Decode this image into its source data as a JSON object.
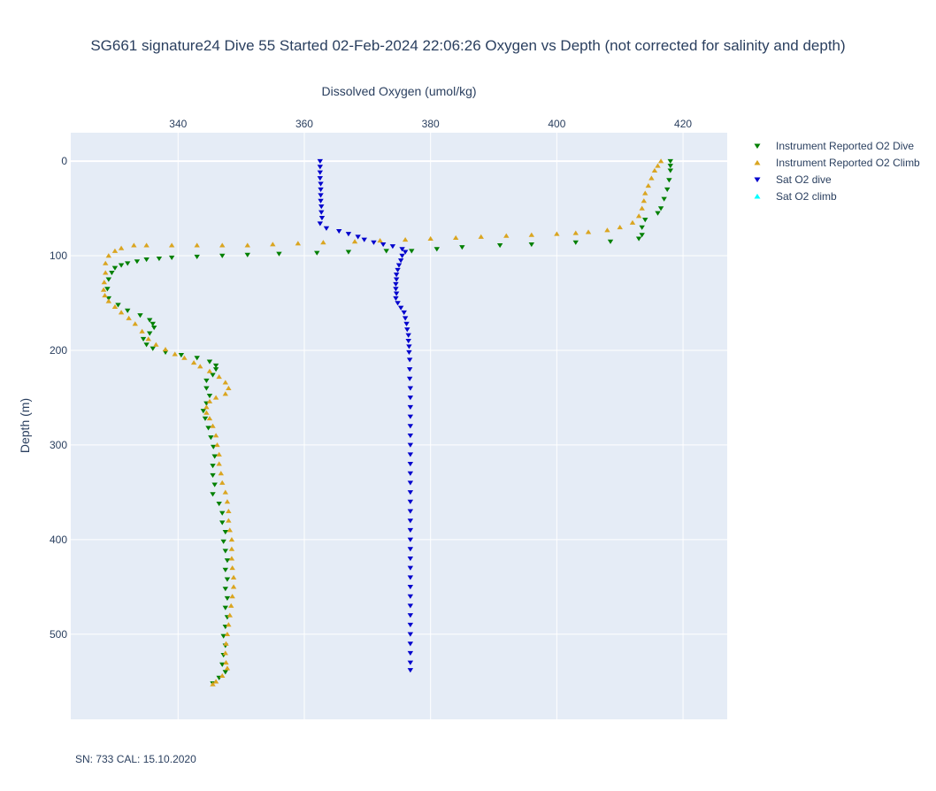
{
  "chart_data": {
    "type": "scatter",
    "title": "SG661 signature24 Dive 55 Started 02-Feb-2024 22:06:26  Oxygen vs Depth (not corrected for salinity and depth)",
    "xlabel": "Dissolved Oxygen (umol/kg)",
    "ylabel": "Depth (m)",
    "x_axis_position": "top",
    "y_reversed": true,
    "xlim": [
      323,
      427
    ],
    "ylim": [
      590,
      -30
    ],
    "x_ticks": [
      340,
      360,
      380,
      400,
      420
    ],
    "y_ticks": [
      0,
      100,
      200,
      300,
      400,
      500
    ],
    "grid": true,
    "legend_position": "top-right",
    "footnote": "SN: 733  CAL: 15.10.2020",
    "series": [
      {
        "name": "Instrument Reported O2 Dive",
        "color": "#008000",
        "marker": "triangle-down",
        "points": [
          [
            418,
            0
          ],
          [
            418,
            5
          ],
          [
            418,
            10
          ],
          [
            417.8,
            20
          ],
          [
            417.5,
            30
          ],
          [
            417,
            40
          ],
          [
            416.5,
            50
          ],
          [
            416,
            55
          ],
          [
            414,
            62
          ],
          [
            413.5,
            70
          ],
          [
            413.5,
            78
          ],
          [
            413,
            82
          ],
          [
            408.5,
            85
          ],
          [
            403,
            86
          ],
          [
            396,
            88
          ],
          [
            391,
            89
          ],
          [
            385,
            91
          ],
          [
            381,
            93
          ],
          [
            377,
            95
          ],
          [
            373,
            95
          ],
          [
            367,
            96
          ],
          [
            362,
            97
          ],
          [
            356,
            98
          ],
          [
            351,
            99
          ],
          [
            347,
            100
          ],
          [
            343,
            101
          ],
          [
            339,
            102
          ],
          [
            337,
            103
          ],
          [
            335,
            104
          ],
          [
            333.5,
            106
          ],
          [
            332,
            108
          ],
          [
            331,
            110
          ],
          [
            330,
            113
          ],
          [
            329.5,
            118
          ],
          [
            329,
            125
          ],
          [
            328.8,
            135
          ],
          [
            329,
            145
          ],
          [
            330.5,
            152
          ],
          [
            332,
            158
          ],
          [
            334,
            163
          ],
          [
            335.5,
            168
          ],
          [
            336,
            172
          ],
          [
            336.2,
            176
          ],
          [
            335.5,
            182
          ],
          [
            334.5,
            188
          ],
          [
            335,
            194
          ],
          [
            336,
            198
          ],
          [
            338,
            202
          ],
          [
            340.5,
            205
          ],
          [
            343,
            208
          ],
          [
            345,
            212
          ],
          [
            346,
            216
          ],
          [
            346,
            220
          ],
          [
            345.5,
            226
          ],
          [
            344.5,
            232
          ],
          [
            344.5,
            240
          ],
          [
            345,
            248
          ],
          [
            344.5,
            256
          ],
          [
            344,
            264
          ],
          [
            344.3,
            272
          ],
          [
            344.8,
            282
          ],
          [
            345.2,
            292
          ],
          [
            345.6,
            302
          ],
          [
            345.8,
            312
          ],
          [
            345.5,
            322
          ],
          [
            345.5,
            332
          ],
          [
            345.8,
            342
          ],
          [
            345.5,
            352
          ],
          [
            346.5,
            362
          ],
          [
            347,
            372
          ],
          [
            347,
            382
          ],
          [
            347.5,
            392
          ],
          [
            347.2,
            402
          ],
          [
            347.5,
            412
          ],
          [
            347.8,
            422
          ],
          [
            347.5,
            432
          ],
          [
            347.8,
            442
          ],
          [
            347.5,
            452
          ],
          [
            347.8,
            462
          ],
          [
            347.5,
            472
          ],
          [
            347.8,
            482
          ],
          [
            347.5,
            492
          ],
          [
            347.2,
            502
          ],
          [
            347.5,
            512
          ],
          [
            347.2,
            522
          ],
          [
            347,
            532
          ],
          [
            347.5,
            540
          ],
          [
            346.5,
            546
          ],
          [
            345.5,
            552
          ]
        ]
      },
      {
        "name": "Instrument Reported O2 Climb",
        "color": "#DAA520",
        "marker": "triangle-up",
        "points": [
          [
            416.5,
            0
          ],
          [
            416,
            5
          ],
          [
            415.5,
            10
          ],
          [
            415,
            18
          ],
          [
            414.5,
            26
          ],
          [
            414,
            34
          ],
          [
            413.8,
            42
          ],
          [
            413.5,
            50
          ],
          [
            413,
            58
          ],
          [
            412,
            65
          ],
          [
            410,
            70
          ],
          [
            408,
            73
          ],
          [
            405,
            75
          ],
          [
            403,
            76
          ],
          [
            400,
            77
          ],
          [
            396,
            78
          ],
          [
            392,
            79
          ],
          [
            388,
            80
          ],
          [
            384,
            81
          ],
          [
            380,
            82
          ],
          [
            376,
            83
          ],
          [
            372,
            84
          ],
          [
            368,
            85
          ],
          [
            363,
            86
          ],
          [
            359,
            87
          ],
          [
            355,
            88
          ],
          [
            351,
            89
          ],
          [
            347,
            89
          ],
          [
            343,
            89
          ],
          [
            339,
            89
          ],
          [
            335,
            89
          ],
          [
            333,
            89
          ],
          [
            331,
            92
          ],
          [
            330,
            95
          ],
          [
            329,
            100
          ],
          [
            328.5,
            108
          ],
          [
            328.5,
            118
          ],
          [
            328.3,
            128
          ],
          [
            328.2,
            136
          ],
          [
            328.4,
            142
          ],
          [
            329,
            148
          ],
          [
            330,
            154
          ],
          [
            331,
            160
          ],
          [
            332.2,
            166
          ],
          [
            333.2,
            172
          ],
          [
            334.3,
            180
          ],
          [
            335.3,
            188
          ],
          [
            336.5,
            194
          ],
          [
            338,
            199
          ],
          [
            339.5,
            204
          ],
          [
            341,
            208
          ],
          [
            342.5,
            213
          ],
          [
            343.5,
            217
          ],
          [
            345,
            222
          ],
          [
            346.5,
            228
          ],
          [
            347.5,
            234
          ],
          [
            348,
            240
          ],
          [
            347.5,
            246
          ],
          [
            346,
            250
          ],
          [
            345,
            254
          ],
          [
            344.5,
            260
          ],
          [
            344.5,
            266
          ],
          [
            345,
            272
          ],
          [
            345.5,
            280
          ],
          [
            346,
            290
          ],
          [
            346.2,
            300
          ],
          [
            346.5,
            310
          ],
          [
            346.5,
            320
          ],
          [
            346.8,
            330
          ],
          [
            347,
            340
          ],
          [
            347.5,
            350
          ],
          [
            347.8,
            360
          ],
          [
            348,
            370
          ],
          [
            348,
            380
          ],
          [
            348.2,
            390
          ],
          [
            348.5,
            400
          ],
          [
            348.5,
            410
          ],
          [
            348.5,
            420
          ],
          [
            348.6,
            430
          ],
          [
            348.8,
            440
          ],
          [
            348.8,
            450
          ],
          [
            348.6,
            460
          ],
          [
            348.4,
            470
          ],
          [
            348.2,
            480
          ],
          [
            348,
            490
          ],
          [
            347.8,
            500
          ],
          [
            347.6,
            510
          ],
          [
            347.5,
            520
          ],
          [
            347.6,
            530
          ],
          [
            347.8,
            536
          ],
          [
            347,
            544
          ],
          [
            346,
            550
          ],
          [
            345.5,
            553
          ]
        ]
      },
      {
        "name": "Sat O2 dive",
        "color": "#0000CD",
        "marker": "triangle-down",
        "points": [
          [
            362.5,
            0
          ],
          [
            362.5,
            6
          ],
          [
            362.5,
            12
          ],
          [
            362.5,
            18
          ],
          [
            362.6,
            24
          ],
          [
            362.6,
            30
          ],
          [
            362.6,
            36
          ],
          [
            362.6,
            42
          ],
          [
            362.7,
            48
          ],
          [
            362.7,
            54
          ],
          [
            362.8,
            60
          ],
          [
            362.5,
            66
          ],
          [
            363.5,
            71
          ],
          [
            365.5,
            74
          ],
          [
            367,
            77
          ],
          [
            368.5,
            80
          ],
          [
            369.5,
            83
          ],
          [
            371,
            86
          ],
          [
            372.5,
            88
          ],
          [
            374,
            90
          ],
          [
            375.5,
            93
          ],
          [
            376,
            96
          ],
          [
            375.5,
            100
          ],
          [
            375.3,
            105
          ],
          [
            375,
            110
          ],
          [
            374.8,
            115
          ],
          [
            374.6,
            120
          ],
          [
            374.6,
            125
          ],
          [
            374.5,
            130
          ],
          [
            374.5,
            135
          ],
          [
            374.6,
            140
          ],
          [
            374.5,
            145
          ],
          [
            374.8,
            150
          ],
          [
            375.3,
            155
          ],
          [
            375.8,
            160
          ],
          [
            376,
            166
          ],
          [
            376.2,
            172
          ],
          [
            376.3,
            178
          ],
          [
            376.5,
            184
          ],
          [
            376.5,
            190
          ],
          [
            376.6,
            196
          ],
          [
            376.6,
            202
          ],
          [
            376.7,
            210
          ],
          [
            376.7,
            220
          ],
          [
            376.7,
            230
          ],
          [
            376.8,
            240
          ],
          [
            376.8,
            250
          ],
          [
            376.8,
            260
          ],
          [
            376.8,
            270
          ],
          [
            376.8,
            280
          ],
          [
            376.8,
            290
          ],
          [
            376.8,
            300
          ],
          [
            376.8,
            310
          ],
          [
            376.8,
            320
          ],
          [
            376.8,
            330
          ],
          [
            376.8,
            340
          ],
          [
            376.8,
            350
          ],
          [
            376.8,
            360
          ],
          [
            376.8,
            370
          ],
          [
            376.8,
            380
          ],
          [
            376.8,
            390
          ],
          [
            376.8,
            400
          ],
          [
            376.8,
            410
          ],
          [
            376.8,
            420
          ],
          [
            376.8,
            430
          ],
          [
            376.8,
            440
          ],
          [
            376.8,
            450
          ],
          [
            376.8,
            460
          ],
          [
            376.8,
            470
          ],
          [
            376.8,
            480
          ],
          [
            376.8,
            490
          ],
          [
            376.8,
            500
          ],
          [
            376.8,
            510
          ],
          [
            376.8,
            520
          ],
          [
            376.8,
            530
          ],
          [
            376.8,
            538
          ]
        ]
      },
      {
        "name": "Sat O2 climb",
        "color": "#00FFFF",
        "marker": "triangle-up",
        "points": []
      }
    ]
  }
}
